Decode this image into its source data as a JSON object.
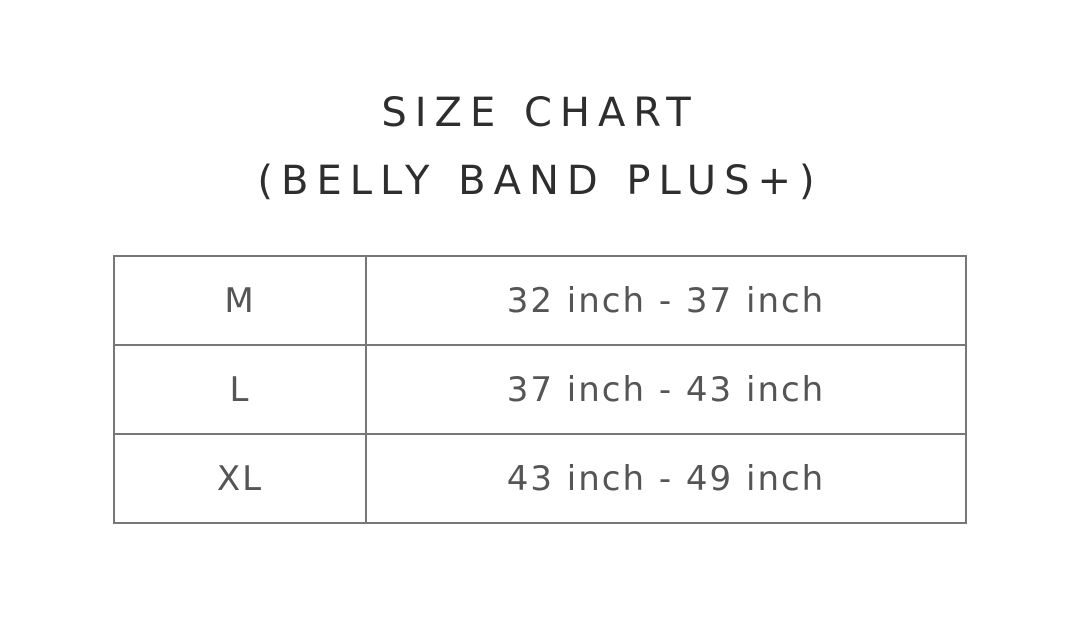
{
  "title": {
    "line1": "SIZE CHART",
    "line2": "(BELLY BAND PLUS+)"
  },
  "rows": [
    {
      "size": "M",
      "range": "32 inch - 37 inch"
    },
    {
      "size": "L",
      "range": "37 inch - 43 inch"
    },
    {
      "size": "XL",
      "range": "43 inch - 49 inch"
    }
  ]
}
